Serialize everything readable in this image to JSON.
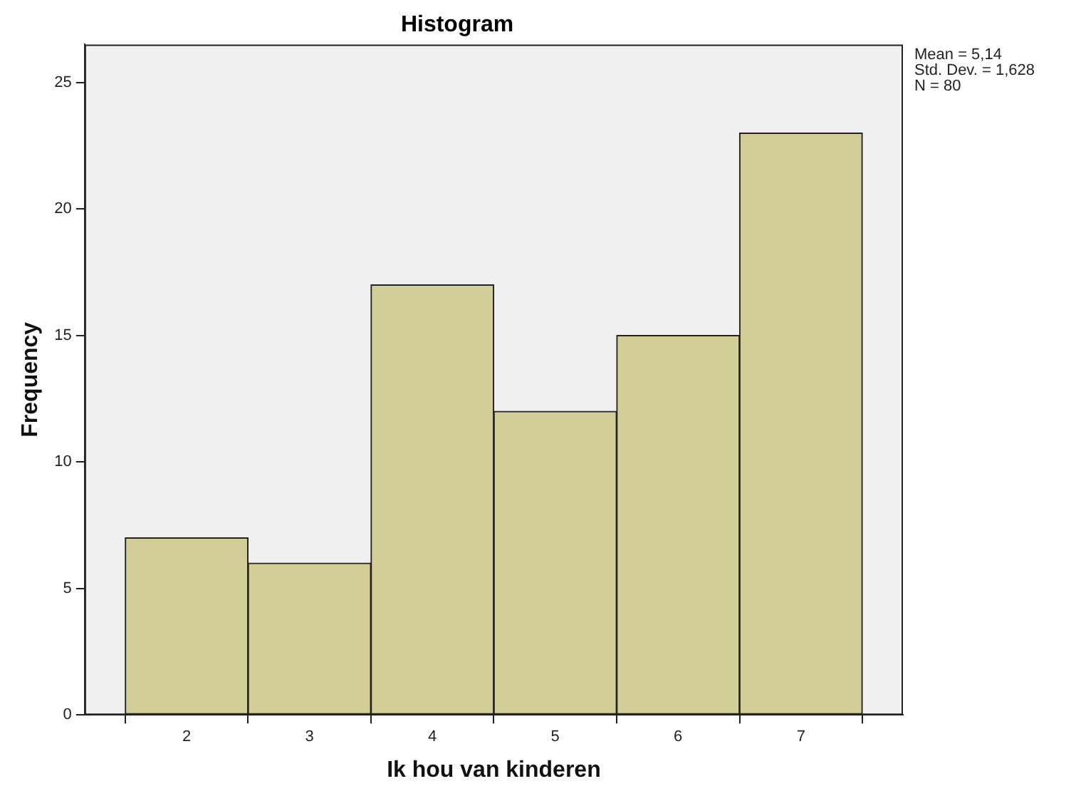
{
  "chart_data": {
    "type": "histogram",
    "title": "Histogram",
    "xlabel": "Ik hou van kinderen",
    "ylabel": "Frequency",
    "bins": [
      1.5,
      2.5,
      3.5,
      4.5,
      5.5,
      6.5,
      7.5
    ],
    "values": [
      7,
      6,
      17,
      12,
      15,
      23
    ],
    "color": "#d3ce97",
    "xlim": [
      1.17,
      7.83
    ],
    "xticks": [
      2,
      3,
      4,
      5,
      6,
      7
    ],
    "ylim": [
      0,
      26.5
    ],
    "yticks": [
      0,
      5,
      10,
      15,
      20,
      25
    ],
    "grid": false,
    "legend": false,
    "annotations": [
      "Mean = 5,14",
      "Std. Dev. = 1,628",
      "N = 80"
    ]
  }
}
